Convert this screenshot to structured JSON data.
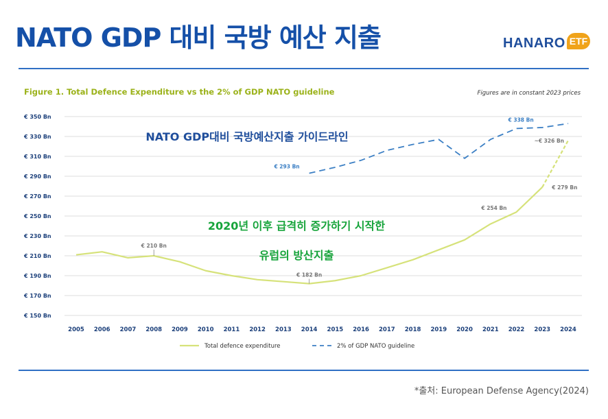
{
  "header": {
    "title": "NATO GDP 대비 국방 예산 지출",
    "logo_text": "HANARO",
    "logo_badge": "ETF"
  },
  "source": "*출처: European Defense Agency(2024)",
  "colors": {
    "title": "#1550a8",
    "total_series": "#d6e27a",
    "guideline_series": "#3b7fc4",
    "figure_title": "#9bb21a",
    "axis_text": "#1b3f7a",
    "annotation_blue": "#1f4e9c",
    "annotation_green": "#17a43b"
  },
  "chart_data": {
    "type": "line",
    "title": "Figure 1. Total Defence Expenditure vs the 2% of GDP NATO guideline",
    "subtitle": "Figures are in constant 2023 prices",
    "xlabel": "",
    "ylabel": "",
    "ylim": [
      150,
      350
    ],
    "grid": true,
    "legend_position": "bottom-left",
    "x": [
      2005,
      2006,
      2007,
      2008,
      2009,
      2010,
      2011,
      2012,
      2013,
      2014,
      2015,
      2016,
      2017,
      2018,
      2019,
      2020,
      2021,
      2022,
      2023,
      2024
    ],
    "yticks": [
      150,
      170,
      190,
      210,
      230,
      250,
      270,
      290,
      310,
      330,
      350
    ],
    "ytick_labels": [
      "€ 150 Bn",
      "€ 170 Bn",
      "€ 190 Bn",
      "€ 210 Bn",
      "€ 230 Bn",
      "€ 250 Bn",
      "€ 270 Bn",
      "€ 290 Bn",
      "€ 310 Bn",
      "€ 330 Bn",
      "€ 350 Bn"
    ],
    "series": [
      {
        "name": "Total defence expenditure",
        "style": "solid",
        "x": [
          2005,
          2006,
          2007,
          2008,
          2009,
          2010,
          2011,
          2012,
          2013,
          2014,
          2015,
          2016,
          2017,
          2018,
          2019,
          2020,
          2021,
          2022,
          2023,
          2024
        ],
        "values": [
          211,
          214,
          208,
          210,
          204,
          195,
          190,
          186,
          184,
          182,
          185,
          190,
          198,
          206,
          216,
          226,
          242,
          254,
          279,
          326
        ]
      },
      {
        "name": "2% of GDP NATO guideline",
        "style": "dashed",
        "x": [
          2014,
          2015,
          2016,
          2017,
          2018,
          2019,
          2020,
          2021,
          2022,
          2023,
          2024
        ],
        "values": [
          293,
          299,
          306,
          316,
          322,
          327,
          308,
          327,
          338,
          339,
          343
        ]
      }
    ],
    "data_labels": [
      {
        "text": "€ 210 Bn",
        "x": 2008,
        "y": 210,
        "series": 0
      },
      {
        "text": "€ 182 Bn",
        "x": 2014,
        "y": 182,
        "series": 0
      },
      {
        "text": "€ 254 Bn",
        "x": 2022,
        "y": 254,
        "series": 0
      },
      {
        "text": "€ 279 Bn",
        "x": 2023,
        "y": 279,
        "series": 0
      },
      {
        "text": "~€ 326 Bn",
        "x": 2024,
        "y": 326,
        "series": 0
      },
      {
        "text": "€ 293 Bn",
        "x": 2014,
        "y": 293,
        "series": 1
      },
      {
        "text": "€ 338 Bn",
        "x": 2022,
        "y": 338,
        "series": 1
      }
    ],
    "annotations": [
      {
        "text": "NATO GDP대비 국방예산지출 가이드라인",
        "color": "blue"
      },
      {
        "text": "2020년 이후 급격히 증가하기 시작한",
        "color": "green"
      },
      {
        "text": "유럽의 방산지출",
        "color": "green"
      }
    ]
  }
}
